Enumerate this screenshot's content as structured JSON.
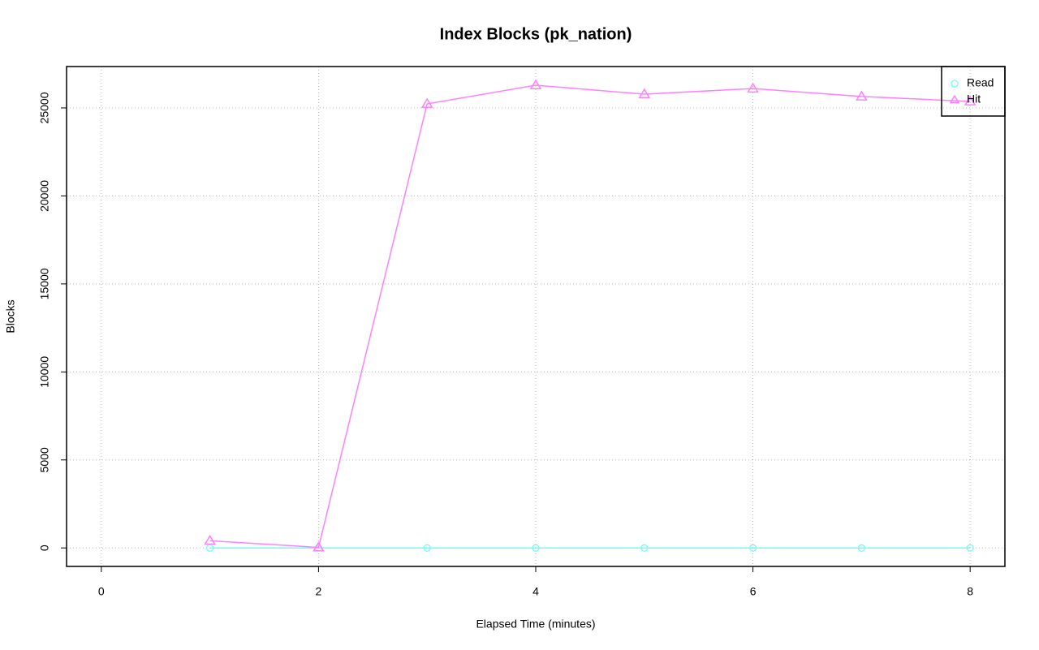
{
  "chart_data": {
    "type": "line",
    "title": "Index Blocks (pk_nation)",
    "x_label": "Elapsed Time (minutes)",
    "y_label": "Blocks",
    "x": [
      1,
      2,
      3,
      4,
      5,
      6,
      7,
      8
    ],
    "series": [
      {
        "name": "Read",
        "color": "#66ffff",
        "marker": "circle",
        "values": [
          0,
          0,
          0,
          0,
          0,
          0,
          0,
          0
        ]
      },
      {
        "name": "Hit",
        "color": "#ff80ff",
        "marker": "triangle",
        "values": [
          410,
          30,
          25230,
          26290,
          25780,
          26100,
          25650,
          25370
        ]
      }
    ],
    "xlim": [
      -0.32,
      8.32
    ],
    "xticks": [
      0,
      2,
      4,
      6,
      8
    ],
    "ylim": [
      -1050,
      27350
    ],
    "yticks": [
      0,
      5000,
      10000,
      15000,
      20000,
      25000
    ],
    "grid": true,
    "legend_position": "top-right"
  }
}
